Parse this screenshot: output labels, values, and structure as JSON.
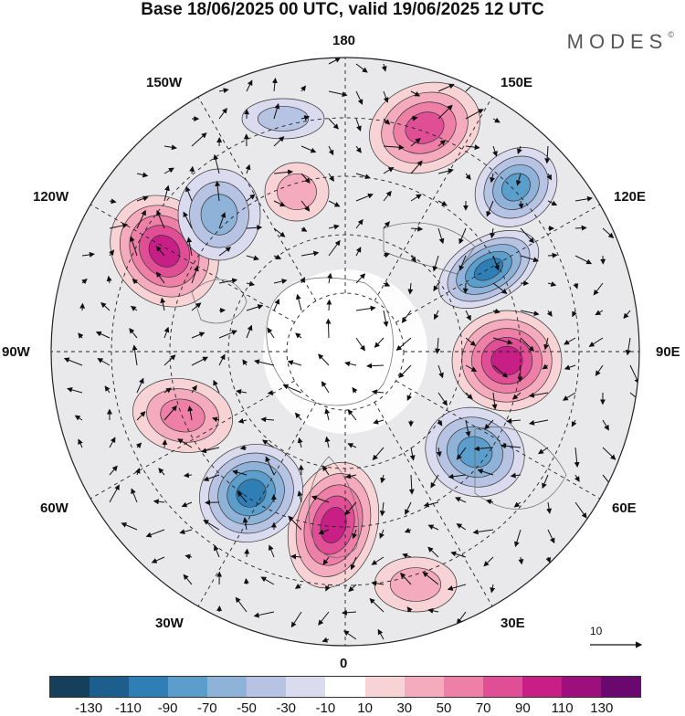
{
  "title": "Base 18/06/2025 00 UTC, valid 19/06/2025 12 UTC",
  "brand": "MODES",
  "brand_mark": "©",
  "longitude_labels": {
    "top": "180",
    "bottom": "0",
    "left": "90W",
    "right": "90E",
    "upper_left_1": "150W",
    "upper_left_2": "120W",
    "upper_right_1": "150E",
    "upper_right_2": "120E",
    "lower_left_1": "60W",
    "lower_left_2": "30W",
    "lower_right_1": "60E",
    "lower_right_2": "30E"
  },
  "reference_vector": "10",
  "colorbar": {
    "colors": [
      "#163f5c",
      "#1c5f8c",
      "#2f7fb6",
      "#5b9dcb",
      "#8fb2d8",
      "#b6c3e2",
      "#dadbee",
      "#ffffff",
      "#f8d3d5",
      "#f4abbd",
      "#ee7fa6",
      "#e04f96",
      "#c81f86",
      "#9c0f7d",
      "#6b0870"
    ],
    "tick_labels": [
      "-130",
      "-110",
      "-90",
      "-70",
      "-50",
      "-30",
      "-10",
      "10",
      "30",
      "50",
      "70",
      "90",
      "110",
      "130"
    ]
  },
  "anomaly_centers": [
    {
      "sign": "positive",
      "level": 70,
      "sector": "150E-180"
    },
    {
      "sign": "negative",
      "level": -70,
      "sector": "120E-150E"
    },
    {
      "sign": "negative",
      "level": -90,
      "sector": "120E"
    },
    {
      "sign": "positive",
      "level": 90,
      "sector": "90E"
    },
    {
      "sign": "negative",
      "level": -70,
      "sector": "60E"
    },
    {
      "sign": "positive",
      "level": 90,
      "sector": "0-30W"
    },
    {
      "sign": "negative",
      "level": -90,
      "sector": "30W-60W"
    },
    {
      "sign": "positive",
      "level": 50,
      "sector": "60W-90W"
    },
    {
      "sign": "positive",
      "level": 90,
      "sector": "120W"
    },
    {
      "sign": "negative",
      "level": -50,
      "sector": "150W"
    },
    {
      "sign": "positive",
      "level": 30,
      "sector": "150W-180"
    },
    {
      "sign": "negative",
      "level": -30,
      "sector": "180-150W"
    },
    {
      "sign": "positive",
      "level": 30,
      "sector": "30E"
    }
  ]
}
